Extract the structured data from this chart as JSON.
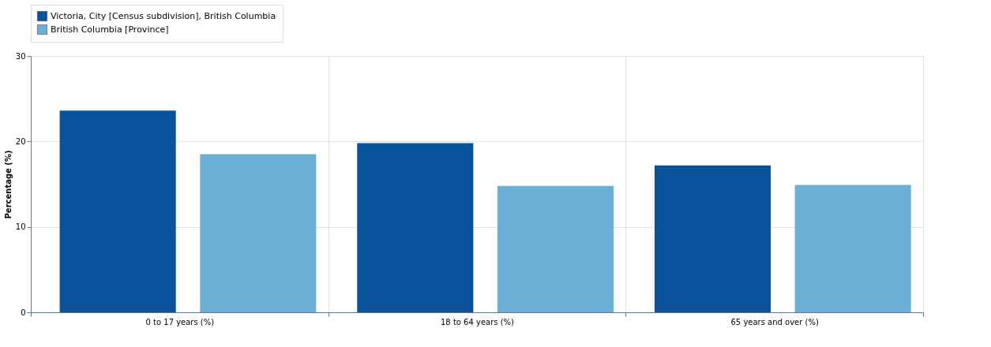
{
  "chart_data": {
    "type": "bar",
    "ylabel": "Percentage (%)",
    "categories": [
      "0 to 17 years (%)",
      "18 to 64 years (%)",
      "65 years and over (%)"
    ],
    "series": [
      {
        "name": "Victoria, City [Census subdivision], British Columbia",
        "color": "#0b529c",
        "values": [
          23.6,
          19.8,
          17.2
        ]
      },
      {
        "name": "British Columbia [Province]",
        "color": "#6baed6",
        "values": [
          18.5,
          14.8,
          14.9
        ]
      }
    ],
    "ylim": [
      0,
      30
    ],
    "yticks": [
      0,
      10,
      20,
      30
    ],
    "grid": true,
    "legend": "top"
  }
}
